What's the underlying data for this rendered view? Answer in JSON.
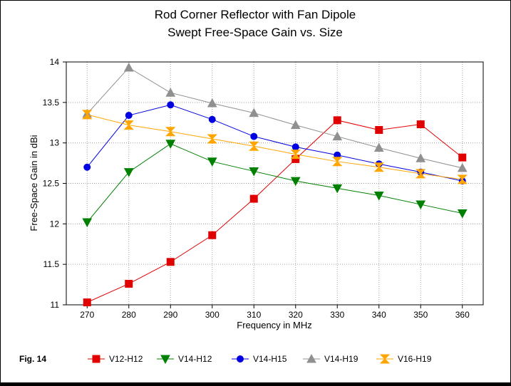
{
  "chart_data": {
    "type": "line",
    "title": "Rod Corner Reflector with Fan Dipole",
    "subtitle": "Swept Free-Space Gain vs. Size",
    "xlabel": "Frequency in MHz",
    "ylabel": "Free-Space Gain in dBi",
    "figure_label": "Fig. 14",
    "x": [
      270,
      280,
      290,
      300,
      310,
      320,
      330,
      340,
      350,
      360
    ],
    "xlim": [
      265,
      365
    ],
    "ylim": [
      11,
      14
    ],
    "yticks": [
      "11",
      "11.5",
      "12",
      "12.5",
      "13",
      "13.5",
      "14"
    ],
    "xticks": [
      "270",
      "280",
      "290",
      "300",
      "310",
      "320",
      "330",
      "340",
      "350",
      "360"
    ],
    "grid": true,
    "legend_position": "bottom",
    "series": [
      {
        "name": "V12-H12",
        "color": "#e00000",
        "marker": "square",
        "values": [
          11.03,
          11.26,
          11.53,
          11.86,
          12.31,
          12.8,
          13.28,
          13.16,
          13.23,
          12.82
        ]
      },
      {
        "name": "V14-H12",
        "color": "#008000",
        "marker": "triangle-down",
        "values": [
          12.02,
          12.64,
          12.99,
          12.77,
          12.65,
          12.53,
          12.44,
          12.35,
          12.24,
          12.13
        ]
      },
      {
        "name": "V14-H15",
        "color": "#0000e0",
        "marker": "circle",
        "values": [
          12.7,
          13.34,
          13.47,
          13.29,
          13.08,
          12.95,
          12.85,
          12.74,
          12.64,
          12.53
        ]
      },
      {
        "name": "V14-H19",
        "color": "#909090",
        "marker": "triangle-up",
        "values": [
          13.36,
          13.93,
          13.62,
          13.49,
          13.37,
          13.22,
          13.08,
          12.94,
          12.81,
          12.69
        ]
      },
      {
        "name": "V16-H19",
        "color": "#ffa500",
        "marker": "hourglass",
        "values": [
          13.35,
          13.22,
          13.14,
          13.05,
          12.96,
          12.86,
          12.77,
          12.7,
          12.62,
          12.55
        ]
      }
    ]
  }
}
